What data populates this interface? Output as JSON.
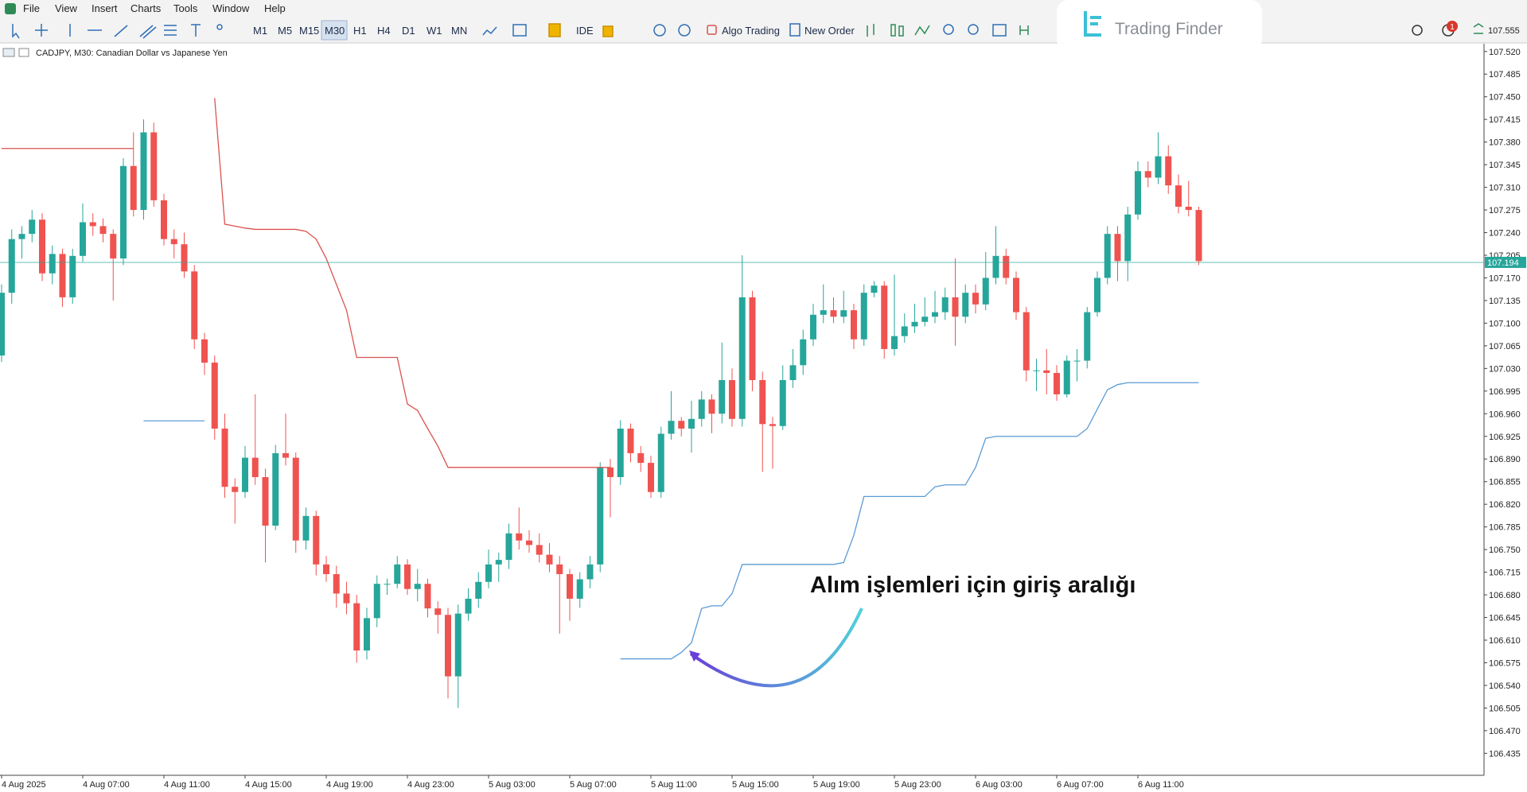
{
  "ui": {
    "menu": [
      "File",
      "View",
      "Insert",
      "Charts",
      "Tools",
      "Window",
      "Help"
    ],
    "timeframes": [
      "M1",
      "M5",
      "M15",
      "M30",
      "H1",
      "H4",
      "D1",
      "W1",
      "MN"
    ],
    "buttons": [
      "IDE",
      "Algo Trading",
      "New Order"
    ],
    "logo": "Trading Finder",
    "badge": "1",
    "top_price_label": "107.555"
  },
  "chart_data": {
    "type": "candlestick",
    "title": "CADJPY, M30:  Canadian Dollar vs Japanese Yen",
    "annotation": "Alım işlemleri için giriş aralığı",
    "up_color": "#26a69a",
    "down_color": "#ef5350",
    "grid": false,
    "ylim": [
      106.401,
      107.532
    ],
    "yticks": [
      {
        "value": 107.52,
        "label": "107.520"
      },
      107.485,
      {
        "value": 107.45,
        "label": "107.450"
      },
      107.415,
      {
        "value": 107.38,
        "label": "107.380"
      },
      107.345,
      {
        "value": 107.31,
        "label": "107.310"
      },
      107.275,
      {
        "value": 107.24,
        "label": "107.240"
      },
      107.205,
      {
        "value": 107.17,
        "label": "107.170"
      },
      107.135,
      {
        "value": 107.1,
        "label": "107.100"
      },
      107.065,
      {
        "value": 107.03,
        "label": "107.030"
      },
      106.995,
      {
        "value": 106.96,
        "label": "106.960"
      },
      106.925,
      {
        "value": 106.89,
        "label": "106.890"
      },
      106.855,
      {
        "value": 106.82,
        "label": "106.820"
      },
      106.785,
      {
        "value": 106.75,
        "label": "106.750"
      },
      106.715,
      {
        "value": 106.68,
        "label": "106.680"
      },
      106.645,
      {
        "value": 106.61,
        "label": "106.610"
      },
      106.575,
      {
        "value": 106.54,
        "label": "106.540"
      },
      106.505,
      {
        "value": 106.47,
        "label": "106.470"
      },
      106.435
    ],
    "xticks": [
      {
        "value": 0,
        "label": "4 Aug 2025"
      },
      {
        "value": 8,
        "label": "4 Aug 07:00"
      },
      {
        "value": 16,
        "label": "4 Aug 11:00"
      },
      {
        "value": 24,
        "label": "4 Aug 15:00"
      },
      {
        "value": 32,
        "label": "4 Aug 19:00"
      },
      {
        "value": 40,
        "label": "4 Aug 23:00"
      },
      {
        "value": 48,
        "label": "5 Aug 03:00"
      },
      {
        "value": 56,
        "label": "5 Aug 07:00"
      },
      {
        "value": 64,
        "label": "5 Aug 11:00"
      },
      {
        "value": 72,
        "label": "5 Aug 15:00"
      },
      {
        "value": 80,
        "label": "5 Aug 19:00"
      },
      {
        "value": 88,
        "label": "5 Aug 23:00"
      },
      {
        "value": 96,
        "label": "6 Aug 03:00"
      },
      {
        "value": 104,
        "label": "6 Aug 07:00"
      },
      {
        "value": 112,
        "label": "6 Aug 11:00"
      }
    ],
    "current_price": {
      "value": 107.194,
      "label": "107.194",
      "color": "#26a69a"
    },
    "ohlc": [
      [
        107.05,
        107.16,
        107.04,
        107.147
      ],
      [
        107.147,
        107.245,
        107.13,
        107.23
      ],
      [
        107.23,
        107.25,
        107.2,
        107.238
      ],
      [
        107.238,
        107.275,
        107.225,
        107.26
      ],
      [
        107.26,
        107.27,
        107.165,
        107.177
      ],
      [
        107.177,
        107.22,
        107.16,
        107.207
      ],
      [
        107.207,
        107.215,
        107.125,
        107.14
      ],
      [
        107.14,
        107.215,
        107.13,
        107.204
      ],
      [
        107.204,
        107.285,
        107.195,
        107.256
      ],
      [
        107.256,
        107.27,
        107.235,
        107.25
      ],
      [
        107.25,
        107.262,
        107.225,
        107.238
      ],
      [
        107.238,
        107.245,
        107.135,
        107.2
      ],
      [
        107.2,
        107.355,
        107.19,
        107.343
      ],
      [
        107.343,
        107.395,
        107.265,
        107.275
      ],
      [
        107.275,
        107.415,
        107.26,
        107.395
      ],
      [
        107.395,
        107.41,
        107.28,
        107.29
      ],
      [
        107.29,
        107.3,
        107.22,
        107.23
      ],
      [
        107.23,
        107.245,
        107.2,
        107.222
      ],
      [
        107.222,
        107.24,
        107.17,
        107.18
      ],
      [
        107.18,
        107.19,
        107.06,
        107.075
      ],
      [
        107.075,
        107.085,
        107.02,
        107.039
      ],
      [
        107.039,
        107.05,
        106.92,
        106.937
      ],
      [
        106.937,
        106.96,
        106.83,
        106.847
      ],
      [
        106.847,
        106.86,
        106.79,
        106.839
      ],
      [
        106.839,
        106.91,
        106.83,
        106.892
      ],
      [
        106.892,
        106.99,
        106.85,
        106.862
      ],
      [
        106.862,
        106.875,
        106.73,
        106.787
      ],
      [
        106.787,
        106.912,
        106.78,
        106.899
      ],
      [
        106.899,
        106.96,
        106.88,
        106.892
      ],
      [
        106.892,
        106.9,
        106.745,
        106.764
      ],
      [
        106.764,
        106.815,
        106.75,
        106.802
      ],
      [
        106.802,
        106.81,
        106.71,
        106.727
      ],
      [
        106.727,
        106.74,
        106.7,
        106.712
      ],
      [
        106.712,
        106.725,
        106.66,
        106.682
      ],
      [
        106.682,
        106.7,
        106.65,
        106.667
      ],
      [
        106.667,
        106.68,
        106.575,
        106.594
      ],
      [
        106.594,
        106.66,
        106.58,
        106.644
      ],
      [
        106.644,
        106.71,
        106.63,
        106.697
      ],
      [
        106.697,
        106.705,
        106.68,
        106.697
      ],
      [
        106.697,
        106.74,
        106.69,
        106.727
      ],
      [
        106.727,
        106.735,
        106.68,
        106.689
      ],
      [
        106.689,
        106.72,
        106.67,
        106.697
      ],
      [
        106.697,
        106.705,
        106.645,
        106.659
      ],
      [
        106.659,
        106.67,
        106.62,
        106.649
      ],
      [
        106.649,
        106.66,
        106.52,
        106.554
      ],
      [
        106.554,
        106.665,
        106.505,
        106.651
      ],
      [
        106.651,
        106.69,
        106.64,
        106.674
      ],
      [
        106.674,
        106.715,
        106.66,
        106.7
      ],
      [
        106.7,
        106.75,
        106.69,
        106.727
      ],
      [
        106.727,
        106.745,
        106.7,
        106.734
      ],
      [
        106.734,
        106.79,
        106.72,
        106.775
      ],
      [
        106.775,
        106.815,
        106.75,
        106.764
      ],
      [
        106.764,
        106.78,
        106.745,
        106.757
      ],
      [
        106.757,
        106.775,
        106.73,
        106.742
      ],
      [
        106.742,
        106.76,
        106.715,
        106.727
      ],
      [
        106.727,
        106.74,
        106.62,
        106.712
      ],
      [
        106.712,
        106.72,
        106.64,
        106.674
      ],
      [
        106.674,
        106.715,
        106.66,
        106.704
      ],
      [
        106.704,
        106.74,
        106.69,
        106.727
      ],
      [
        106.727,
        106.885,
        106.715,
        106.877
      ],
      [
        106.877,
        106.89,
        106.8,
        106.862
      ],
      [
        106.862,
        106.95,
        106.85,
        106.937
      ],
      [
        106.937,
        106.945,
        106.885,
        106.899
      ],
      [
        106.899,
        106.91,
        106.87,
        106.884
      ],
      [
        106.884,
        106.895,
        106.83,
        106.839
      ],
      [
        106.839,
        106.94,
        106.83,
        106.929
      ],
      [
        106.929,
        106.995,
        106.92,
        106.949
      ],
      [
        106.949,
        106.955,
        106.925,
        106.937
      ],
      [
        106.937,
        106.98,
        106.9,
        106.952
      ],
      [
        106.952,
        106.995,
        106.94,
        106.982
      ],
      [
        106.982,
        106.99,
        106.93,
        106.96
      ],
      [
        106.96,
        107.07,
        106.945,
        107.012
      ],
      [
        107.012,
        107.03,
        106.94,
        106.952
      ],
      [
        106.952,
        107.205,
        106.94,
        107.14
      ],
      [
        107.14,
        107.15,
        106.995,
        107.012
      ],
      [
        107.012,
        107.025,
        106.87,
        106.944
      ],
      [
        106.944,
        106.955,
        106.875,
        106.941
      ],
      [
        106.941,
        107.035,
        106.935,
        107.012
      ],
      [
        107.012,
        107.06,
        107.0,
        107.035
      ],
      [
        107.035,
        107.09,
        107.02,
        107.075
      ],
      [
        107.075,
        107.13,
        107.065,
        107.113
      ],
      [
        107.113,
        107.16,
        107.1,
        107.12
      ],
      [
        107.12,
        107.14,
        107.1,
        107.11
      ],
      [
        107.11,
        107.15,
        107.1,
        107.12
      ],
      [
        107.12,
        107.13,
        107.06,
        107.075
      ],
      [
        107.075,
        107.16,
        107.065,
        107.147
      ],
      [
        107.147,
        107.165,
        107.14,
        107.158
      ],
      [
        107.158,
        107.165,
        107.045,
        107.06
      ],
      [
        107.06,
        107.175,
        107.05,
        107.08
      ],
      [
        107.08,
        107.115,
        107.07,
        107.095
      ],
      [
        107.095,
        107.13,
        107.085,
        107.102
      ],
      [
        107.102,
        107.14,
        107.095,
        107.11
      ],
      [
        107.11,
        107.15,
        107.1,
        107.117
      ],
      [
        107.117,
        107.155,
        107.105,
        107.14
      ],
      [
        107.14,
        107.2,
        107.065,
        107.11
      ],
      [
        107.11,
        107.16,
        107.1,
        107.147
      ],
      [
        107.147,
        107.16,
        107.115,
        107.129
      ],
      [
        107.129,
        107.21,
        107.12,
        107.17
      ],
      [
        107.17,
        107.25,
        107.16,
        107.204
      ],
      [
        107.204,
        107.215,
        107.16,
        107.17
      ],
      [
        107.17,
        107.18,
        107.105,
        107.117
      ],
      [
        107.117,
        107.125,
        107.01,
        107.027
      ],
      [
        107.027,
        107.045,
        106.995,
        107.027
      ],
      [
        107.027,
        107.06,
        106.99,
        107.023
      ],
      [
        107.023,
        107.035,
        106.98,
        106.99
      ],
      [
        106.99,
        107.05,
        106.985,
        107.042
      ],
      [
        107.042,
        107.06,
        107.01,
        107.042
      ],
      [
        107.042,
        107.125,
        107.03,
        107.117
      ],
      [
        107.117,
        107.18,
        107.11,
        107.17
      ],
      [
        107.17,
        107.25,
        107.16,
        107.238
      ],
      [
        107.238,
        107.25,
        107.165,
        107.196
      ],
      [
        107.196,
        107.28,
        107.165,
        107.268
      ],
      [
        107.268,
        107.35,
        107.26,
        107.335
      ],
      [
        107.335,
        107.35,
        107.31,
        107.325
      ],
      [
        107.325,
        107.395,
        107.315,
        107.358
      ],
      [
        107.358,
        107.375,
        107.3,
        107.313
      ],
      [
        107.313,
        107.33,
        107.27,
        107.28
      ],
      [
        107.28,
        107.32,
        107.265,
        107.275
      ],
      [
        107.275,
        107.28,
        107.19,
        107.196
      ]
    ],
    "lines": [
      {
        "color": "#d9534f",
        "values": [
          107.37,
          107.37,
          107.37,
          107.37,
          107.37,
          107.37,
          107.37,
          107.37,
          107.37,
          107.37,
          107.37,
          107.37,
          107.37,
          107.37,
          null,
          null,
          null,
          null,
          null,
          null,
          null,
          107.448,
          107.253,
          107.25,
          107.247,
          107.245,
          107.245,
          107.245,
          107.245,
          107.245,
          107.242,
          107.23,
          107.2,
          107.16,
          107.12,
          107.047,
          107.047,
          107.047,
          107.047,
          107.047,
          106.975,
          106.965,
          106.937,
          106.91,
          106.877,
          106.877,
          106.877,
          106.877,
          106.877,
          106.877,
          106.877,
          106.877,
          106.877,
          106.877,
          106.877,
          106.877,
          106.877,
          106.877,
          106.877,
          106.877,
          106.877,
          null,
          null,
          null,
          null,
          null,
          null,
          null,
          null,
          null,
          null,
          null,
          null,
          null,
          null,
          null,
          null,
          null,
          null,
          null,
          null,
          null,
          null,
          null,
          null,
          null,
          null,
          null,
          null,
          null,
          null,
          null,
          null,
          null,
          null,
          null,
          null,
          null,
          null,
          null,
          null,
          null,
          null,
          null,
          null,
          null,
          null,
          null,
          null,
          null,
          null,
          null,
          null,
          null,
          null,
          null,
          null,
          null,
          null
        ]
      },
      {
        "color": "#5b9bd5",
        "values": [
          null,
          null,
          null,
          null,
          null,
          null,
          null,
          null,
          null,
          null,
          null,
          null,
          null,
          null,
          106.949,
          106.949,
          106.949,
          106.949,
          106.949,
          106.949,
          106.949,
          null,
          null,
          null,
          null,
          null,
          null,
          null,
          null,
          null,
          null,
          null,
          null,
          null,
          null,
          null,
          null,
          null,
          null,
          null,
          null,
          null,
          null,
          null,
          null,
          null,
          null,
          null,
          null,
          null,
          null,
          null,
          null,
          null,
          null,
          null,
          null,
          null,
          null,
          null,
          null,
          106.581,
          106.581,
          106.581,
          106.581,
          106.581,
          106.581,
          106.591,
          106.606,
          106.659,
          106.663,
          106.663,
          106.682,
          106.727,
          106.727,
          106.727,
          106.727,
          106.727,
          106.727,
          106.727,
          106.727,
          106.727,
          106.727,
          106.73,
          106.772,
          106.832,
          106.832,
          106.832,
          106.832,
          106.832,
          106.832,
          106.832,
          106.847,
          106.85,
          106.85,
          106.85,
          106.877,
          106.922,
          106.925,
          106.925,
          106.925,
          106.925,
          106.925,
          106.925,
          106.925,
          106.925,
          106.925,
          106.937,
          106.967,
          106.997,
          107.005,
          107.008,
          107.008,
          107.008,
          107.008,
          107.008,
          107.008,
          107.008,
          107.008
        ]
      }
    ]
  }
}
